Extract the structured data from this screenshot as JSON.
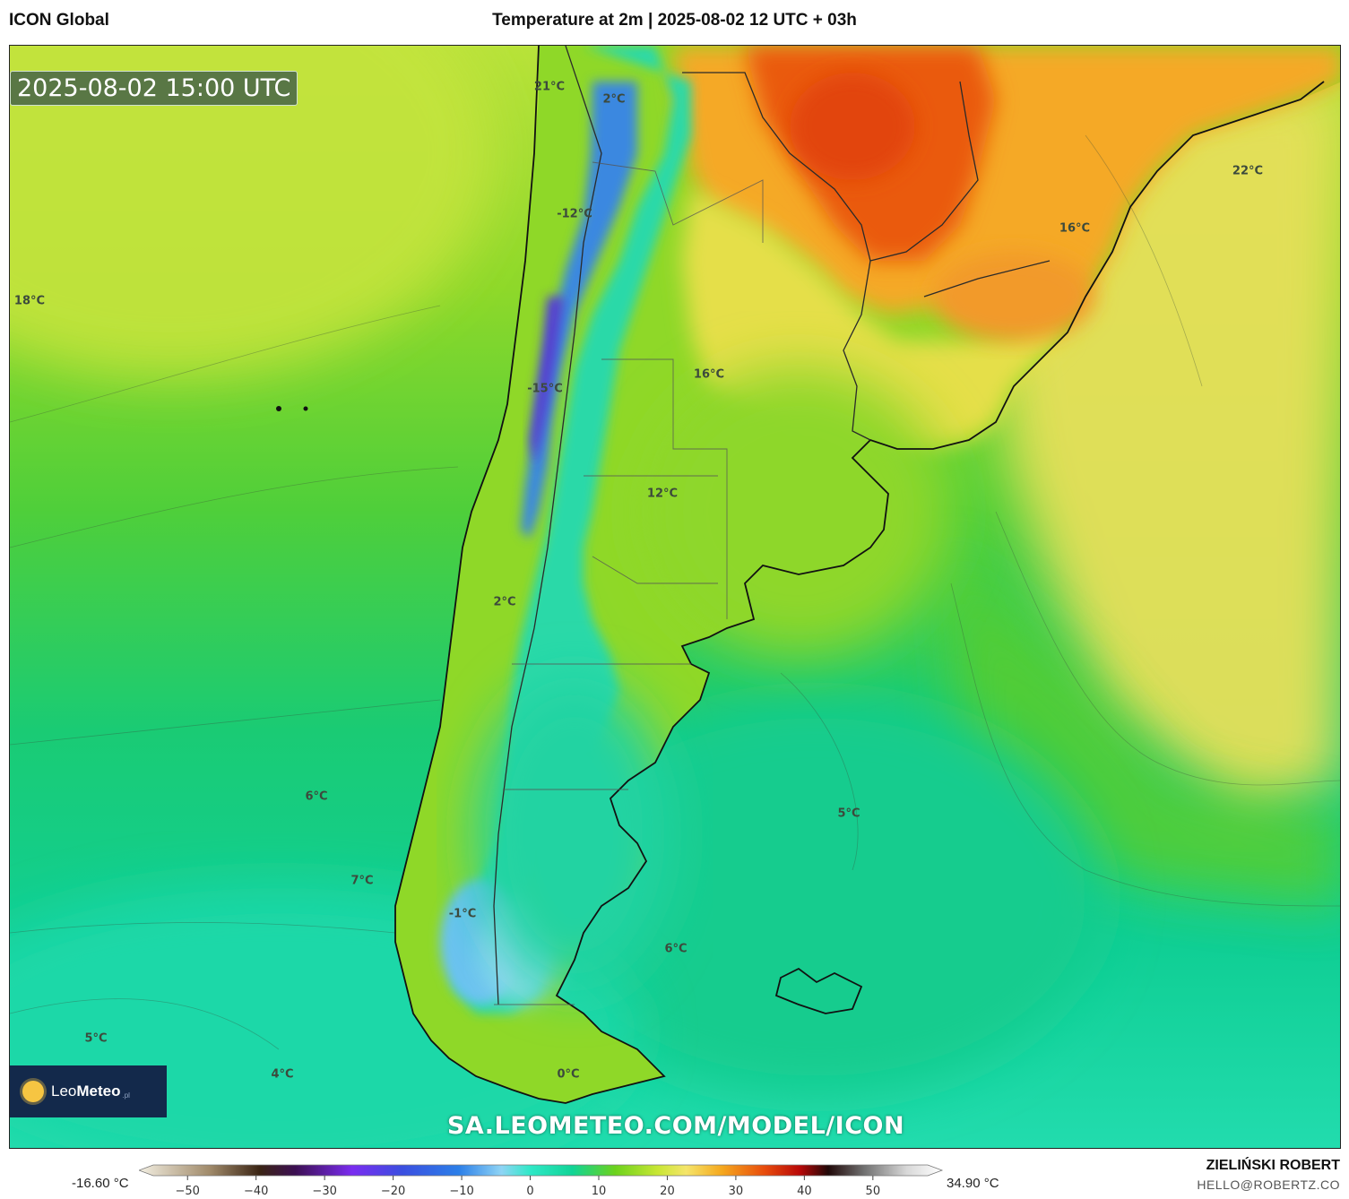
{
  "header": {
    "model_name": "ICON Global",
    "title": "Temperature at 2m | 2025-08-02 12 UTC + 03h"
  },
  "map": {
    "valid_time": "2025-08-02 15:00 UTC",
    "variable": "2 m air temperature",
    "region": "Southern South America",
    "temperature_labels": [
      {
        "text": "21°C",
        "near": "northern Chile coast"
      },
      {
        "text": "2°C",
        "near": "Atacama Andes"
      },
      {
        "text": "22°C",
        "near": "South Atlantic off southern Brazil"
      },
      {
        "text": "16°C",
        "near": "Rio Grande do Sul"
      },
      {
        "text": "-12°C",
        "near": "central Andes"
      },
      {
        "text": "18°C",
        "near": "Pacific Ocean"
      },
      {
        "text": "16°C",
        "near": "north-central Argentina"
      },
      {
        "text": "-15°C",
        "near": "Aconcagua Andes"
      },
      {
        "text": "12°C",
        "near": "central Argentina"
      },
      {
        "text": "2°C",
        "near": "northern Patagonian Andes"
      },
      {
        "text": "6°C",
        "near": "Pacific Ocean"
      },
      {
        "text": "5°C",
        "near": "South Atlantic"
      },
      {
        "text": "7°C",
        "near": "Pacific off Chile"
      },
      {
        "text": "-1°C",
        "near": "southern Patagonian ice field"
      },
      {
        "text": "6°C",
        "near": "South Atlantic near Falklands"
      },
      {
        "text": "5°C",
        "near": "southern Pacific"
      },
      {
        "text": "4°C",
        "near": "southern Pacific"
      },
      {
        "text": "0°C",
        "near": "Tierra del Fuego"
      }
    ],
    "watermark": "SA.LEOMETEO.COM/MODEL/ICON",
    "logo": {
      "name_light": "Leo",
      "name_bold": "Meteo",
      "tld": ".pl"
    }
  },
  "colorbar": {
    "min_label": "-16.60 °C",
    "max_label": "34.90 °C",
    "ticks": [
      "−50",
      "−40",
      "−30",
      "−20",
      "−10",
      "0",
      "10",
      "20",
      "30",
      "40",
      "50"
    ],
    "range": [
      -55,
      58
    ],
    "stops": [
      {
        "v": -55,
        "c": "#f3efe2"
      },
      {
        "v": -45,
        "c": "#a08a6a"
      },
      {
        "v": -38,
        "c": "#3a2414"
      },
      {
        "v": -33,
        "c": "#3c0f52"
      },
      {
        "v": -25,
        "c": "#7a2cf0"
      },
      {
        "v": -18,
        "c": "#3b4ee0"
      },
      {
        "v": -10,
        "c": "#2c7fe8"
      },
      {
        "v": -4,
        "c": "#8fd4f5"
      },
      {
        "v": 0,
        "c": "#30e8c8"
      },
      {
        "v": 6,
        "c": "#10d496"
      },
      {
        "v": 12,
        "c": "#6cd21c"
      },
      {
        "v": 18,
        "c": "#c8e634"
      },
      {
        "v": 22,
        "c": "#f5e56a"
      },
      {
        "v": 27,
        "c": "#f5a81e"
      },
      {
        "v": 33,
        "c": "#e84c0c"
      },
      {
        "v": 38,
        "c": "#b80808"
      },
      {
        "v": 42,
        "c": "#200808"
      },
      {
        "v": 47,
        "c": "#707070"
      },
      {
        "v": 53,
        "c": "#d8d8d8"
      },
      {
        "v": 58,
        "c": "#ffffff"
      }
    ]
  },
  "credits": {
    "author": "ZIELIŃSKI ROBERT",
    "email": "HELLO@ROBERTZ.CO"
  }
}
